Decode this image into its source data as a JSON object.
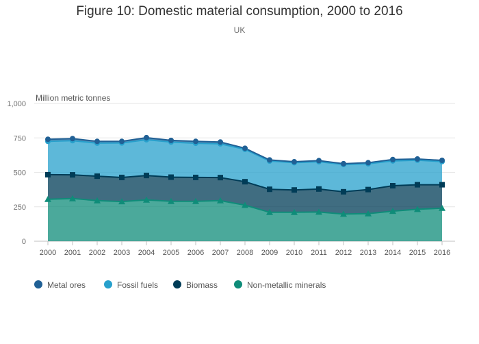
{
  "chart_data": {
    "type": "area",
    "title": "Figure 10: Domestic material consumption, 2000 to 2016",
    "subtitle": "UK",
    "ylabel": "Million metric tonnes",
    "xlabel": "",
    "ylim": [
      0,
      1000
    ],
    "yticks": [
      0,
      250,
      500,
      750,
      1000
    ],
    "ytick_labels": [
      "0",
      "250",
      "500",
      "750",
      "1,000"
    ],
    "stacked": true,
    "grid": true,
    "legend_position": "bottom-left",
    "x": [
      "2000",
      "2001",
      "2002",
      "2003",
      "2004",
      "2005",
      "2006",
      "2007",
      "2008",
      "2009",
      "2010",
      "2011",
      "2012",
      "2013",
      "2014",
      "2015",
      "2016"
    ],
    "series": [
      {
        "name": "Non-metallic minerals",
        "color": "#0f8c79",
        "marker": "triangle",
        "values": [
          305,
          310,
          295,
          288,
          300,
          290,
          290,
          295,
          262,
          210,
          210,
          212,
          197,
          200,
          218,
          232,
          240
        ]
      },
      {
        "name": "Biomass",
        "color": "#003c57",
        "marker": "square",
        "values": [
          178,
          172,
          177,
          175,
          177,
          175,
          173,
          167,
          170,
          167,
          162,
          167,
          162,
          175,
          185,
          178,
          170
        ]
      },
      {
        "name": "Fossil fuels",
        "color": "#27a0cc",
        "marker": "circle",
        "values": [
          242,
          248,
          240,
          250,
          260,
          255,
          248,
          245,
          235,
          205,
          198,
          198,
          198,
          187,
          180,
          178,
          168
        ]
      },
      {
        "name": "Metal ores",
        "color": "#206095",
        "marker": "circle",
        "values": [
          15,
          15,
          13,
          12,
          15,
          12,
          14,
          13,
          8,
          8,
          7,
          8,
          6,
          8,
          10,
          9,
          9
        ]
      }
    ],
    "legend_order": [
      "Metal ores",
      "Fossil fuels",
      "Biomass",
      "Non-metallic minerals"
    ]
  }
}
